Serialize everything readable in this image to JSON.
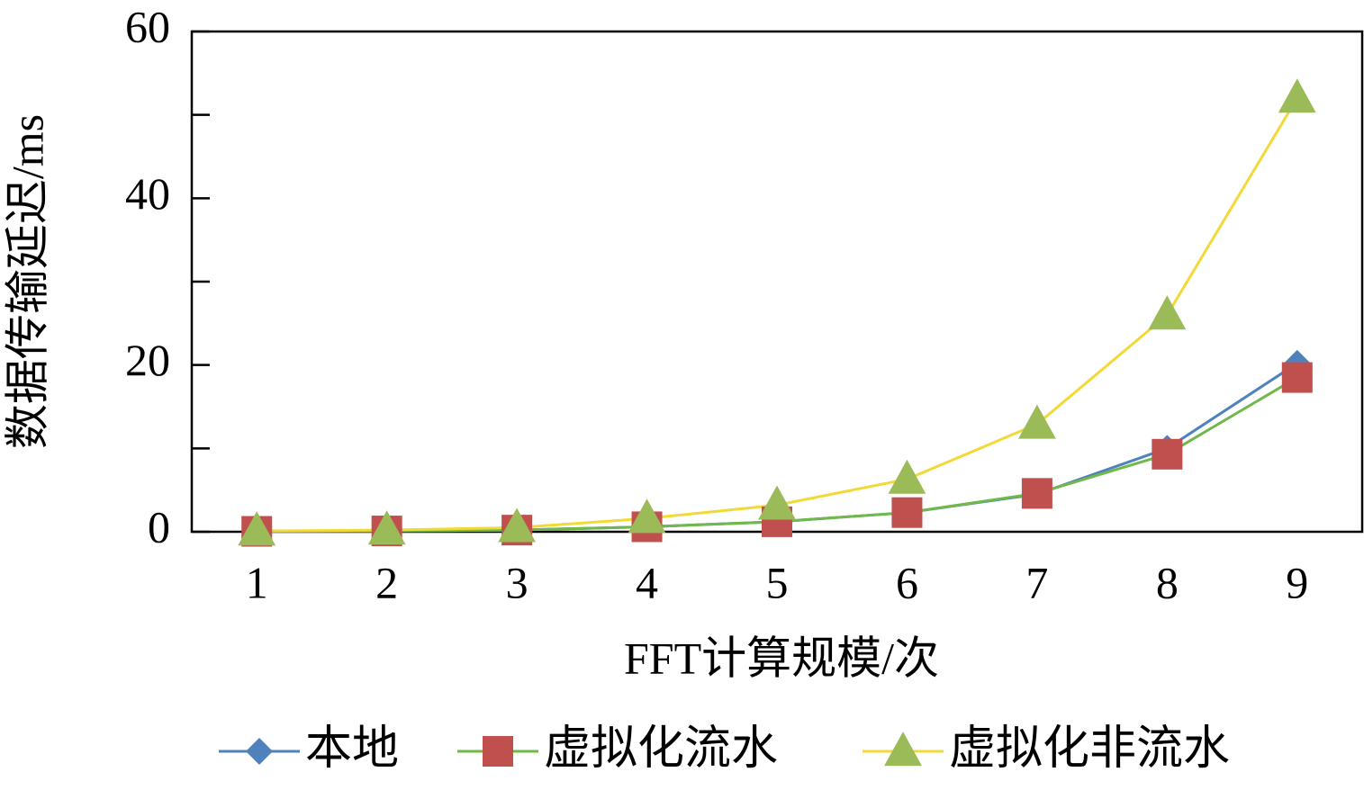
{
  "chart_data": {
    "type": "line",
    "x_label": "FFT计算规模/次",
    "y_label": "数据传输延迟/ms",
    "categories": [
      "1",
      "2",
      "3",
      "4",
      "5",
      "6",
      "7",
      "8",
      "9"
    ],
    "series": [
      {
        "name": "本地",
        "color": "#4f81bd",
        "marker_color": "#4f81bd",
        "marker": "diamond",
        "values": [
          0.05,
          0.1,
          0.2,
          0.6,
          1.2,
          2.3,
          4.5,
          10.0,
          20.2
        ]
      },
      {
        "name": "虚拟化流水",
        "color": "#70b84a",
        "marker_color": "#c0504d",
        "marker": "square",
        "values": [
          0.05,
          0.1,
          0.2,
          0.6,
          1.2,
          2.3,
          4.6,
          9.3,
          18.5
        ]
      },
      {
        "name": "虚拟化非流水",
        "color": "#f2d937",
        "marker_color": "#9bbb59",
        "marker": "triangle",
        "values": [
          0.1,
          0.2,
          0.5,
          1.6,
          3.2,
          6.3,
          12.9,
          26.0,
          52.0
        ]
      }
    ],
    "ylim": [
      0,
      60
    ],
    "yticks": [
      0,
      20,
      40,
      60
    ],
    "yminorticks": [
      10,
      30,
      50
    ],
    "legend": "bottom"
  }
}
